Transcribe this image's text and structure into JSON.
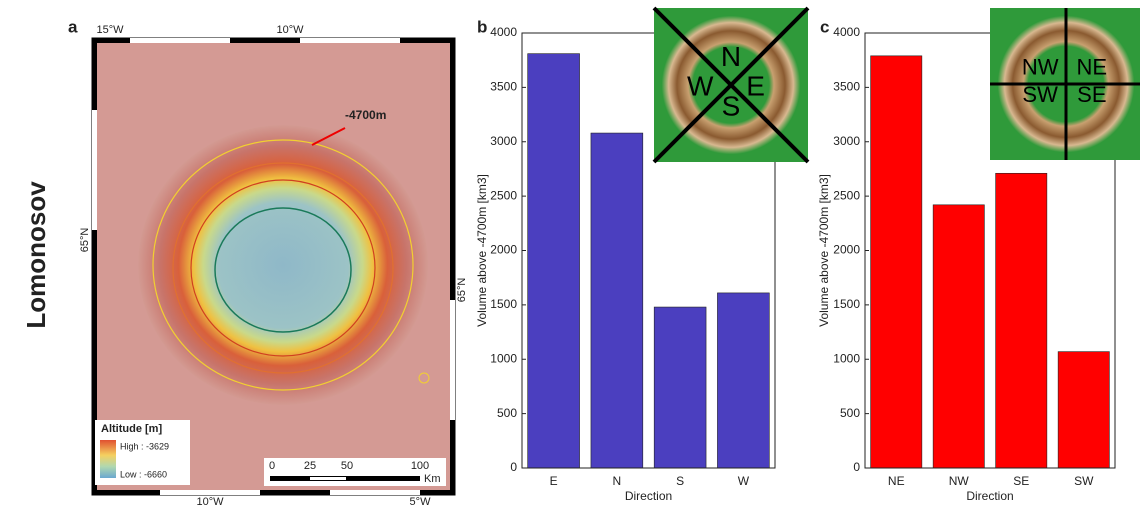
{
  "figure": {
    "row_label": "Lomonosov"
  },
  "map": {
    "panel_label": "a",
    "top_labels": [
      "15°W",
      "10°W"
    ],
    "bottom_labels": [
      "10°W",
      "5°W"
    ],
    "left_label": "65°N",
    "right_label": "65°N",
    "annotation": "-4700m",
    "legend": {
      "title": "Altitude [m]",
      "high": "High : -3629",
      "low": "Low : -6660"
    },
    "scale": {
      "labels": [
        "0",
        "25",
        "50",
        "100"
      ],
      "unit": "Km"
    }
  },
  "chart_data": [
    {
      "type": "bar",
      "panel_label": "b",
      "categories": [
        "E",
        "N",
        "S",
        "W"
      ],
      "values": [
        3810,
        3080,
        1480,
        1610
      ],
      "color": "#4b3fbf",
      "ylim": [
        0,
        4000
      ],
      "yticks": [
        0,
        500,
        1000,
        1500,
        2000,
        2500,
        3000,
        3500,
        4000
      ],
      "x_label": "Direction",
      "y_label": "Volume above -4700m [km3]",
      "inset_labels": [
        "N",
        "W",
        "E",
        "S"
      ]
    },
    {
      "type": "bar",
      "panel_label": "c",
      "categories": [
        "NE",
        "NW",
        "SE",
        "SW"
      ],
      "values": [
        3790,
        2420,
        2710,
        1070
      ],
      "color": "#ff0000",
      "ylim": [
        0,
        4000
      ],
      "yticks": [
        0,
        500,
        1000,
        1500,
        2000,
        2500,
        3000,
        3500,
        4000
      ],
      "x_label": "Direction",
      "y_label": "Volume above -4700m [km3]",
      "inset_labels": [
        "NW",
        "NE",
        "SW",
        "SE"
      ]
    }
  ]
}
